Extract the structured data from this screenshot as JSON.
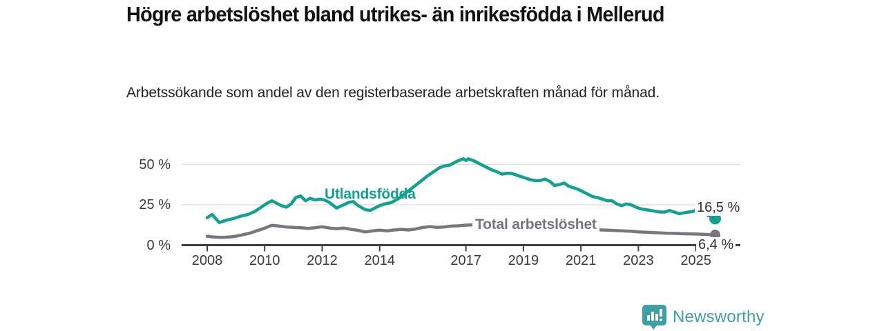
{
  "header": {
    "title": "Högre arbetslöshet bland utrikes- än inrikesfödda i Mellerud",
    "subtitle": "Arbetssökande som andel av den registerbaserade arbetskraften månad för månad."
  },
  "chart_data": {
    "type": "line",
    "title": "Högre arbetslöshet bland utrikes- än inrikesfödda i Mellerud",
    "xlabel": "",
    "ylabel": "Arbetssökande som andel av den registerbaserade arbetskraften (%)",
    "grid": "horizontal",
    "legend_position": "inline-labels",
    "x_axis": {
      "ticks": [
        2008,
        2010,
        2012,
        2014,
        2017,
        2019,
        2021,
        2023,
        2025
      ],
      "range": [
        2007.2,
        2026.5
      ]
    },
    "y_axis": {
      "ticks": [
        0,
        25,
        50
      ],
      "tick_labels": [
        "0 %",
        "25 %",
        "50 %"
      ],
      "range": [
        0,
        57
      ],
      "unit": "%"
    },
    "series": [
      {
        "name": "Utlandsfödda",
        "color": "#12A191",
        "end_label": "16,5 %",
        "end_value": 16.5,
        "points": [
          [
            2008.0,
            17
          ],
          [
            2008.17,
            19
          ],
          [
            2008.42,
            14
          ],
          [
            2008.67,
            15.5
          ],
          [
            2008.92,
            16.5
          ],
          [
            2009.17,
            18
          ],
          [
            2009.42,
            19
          ],
          [
            2009.67,
            21
          ],
          [
            2009.92,
            24
          ],
          [
            2010.08,
            26
          ],
          [
            2010.25,
            27.5
          ],
          [
            2010.42,
            26
          ],
          [
            2010.58,
            24.5
          ],
          [
            2010.75,
            23.5
          ],
          [
            2010.92,
            25.5
          ],
          [
            2011.08,
            29.5
          ],
          [
            2011.25,
            30.5
          ],
          [
            2011.42,
            27.5
          ],
          [
            2011.58,
            29
          ],
          [
            2011.75,
            28
          ],
          [
            2011.92,
            28.5
          ],
          [
            2012.08,
            28
          ],
          [
            2012.25,
            26.5
          ],
          [
            2012.5,
            23
          ],
          [
            2012.75,
            25
          ],
          [
            2012.92,
            26.5
          ],
          [
            2013.08,
            27
          ],
          [
            2013.25,
            24.5
          ],
          [
            2013.5,
            22
          ],
          [
            2013.67,
            21.5
          ],
          [
            2013.83,
            23
          ],
          [
            2014.0,
            24.5
          ],
          [
            2014.17,
            25.5
          ],
          [
            2014.42,
            26.5
          ],
          [
            2014.67,
            29
          ],
          [
            2014.92,
            32.5
          ],
          [
            2015.17,
            36
          ],
          [
            2015.42,
            39.5
          ],
          [
            2015.67,
            43
          ],
          [
            2015.92,
            46
          ],
          [
            2016.08,
            48
          ],
          [
            2016.25,
            49
          ],
          [
            2016.42,
            49.5
          ],
          [
            2016.58,
            51
          ],
          [
            2016.75,
            52.5
          ],
          [
            2016.92,
            53.5
          ],
          [
            2017.0,
            52.5
          ],
          [
            2017.08,
            53.5
          ],
          [
            2017.25,
            52.5
          ],
          [
            2017.42,
            51
          ],
          [
            2017.58,
            49.5
          ],
          [
            2017.75,
            48
          ],
          [
            2017.92,
            46.5
          ],
          [
            2018.08,
            45.5
          ],
          [
            2018.25,
            44
          ],
          [
            2018.42,
            44.5
          ],
          [
            2018.58,
            44.5
          ],
          [
            2018.75,
            43.5
          ],
          [
            2018.92,
            42.5
          ],
          [
            2019.08,
            41.5
          ],
          [
            2019.25,
            40.5
          ],
          [
            2019.42,
            40
          ],
          [
            2019.58,
            40
          ],
          [
            2019.75,
            41
          ],
          [
            2019.92,
            39.5
          ],
          [
            2020.08,
            37
          ],
          [
            2020.25,
            37.5
          ],
          [
            2020.42,
            38.5
          ],
          [
            2020.58,
            36.5
          ],
          [
            2020.75,
            35.5
          ],
          [
            2020.92,
            34.5
          ],
          [
            2021.08,
            33
          ],
          [
            2021.25,
            31.5
          ],
          [
            2021.42,
            30
          ],
          [
            2021.58,
            29.5
          ],
          [
            2021.75,
            28.5
          ],
          [
            2021.92,
            27.5
          ],
          [
            2022.08,
            27.5
          ],
          [
            2022.25,
            25.5
          ],
          [
            2022.42,
            24.5
          ],
          [
            2022.58,
            25.5
          ],
          [
            2022.75,
            25
          ],
          [
            2022.92,
            23.5
          ],
          [
            2023.08,
            22.5
          ],
          [
            2023.25,
            22
          ],
          [
            2023.42,
            21.5
          ],
          [
            2023.58,
            21
          ],
          [
            2023.75,
            20.5
          ],
          [
            2023.92,
            20.5
          ],
          [
            2024.08,
            21.5
          ],
          [
            2024.25,
            20.5
          ],
          [
            2024.42,
            19.5
          ],
          [
            2024.58,
            20
          ],
          [
            2024.75,
            20.5
          ],
          [
            2024.92,
            21
          ],
          [
            2025.08,
            22.5
          ],
          [
            2025.25,
            21
          ],
          [
            2025.42,
            18.5
          ],
          [
            2025.67,
            16.5
          ]
        ]
      },
      {
        "name": "Total arbetslöshet",
        "color": "#77777E",
        "end_label": "6,4 %",
        "end_value": 6.4,
        "points": [
          [
            2008.0,
            5.5
          ],
          [
            2008.25,
            5
          ],
          [
            2008.5,
            4.8
          ],
          [
            2008.75,
            5
          ],
          [
            2009.0,
            5.5
          ],
          [
            2009.25,
            6.5
          ],
          [
            2009.5,
            7.5
          ],
          [
            2009.75,
            9
          ],
          [
            2010.0,
            10.5
          ],
          [
            2010.25,
            12.3
          ],
          [
            2010.5,
            11.8
          ],
          [
            2010.75,
            11.3
          ],
          [
            2011.0,
            11
          ],
          [
            2011.25,
            10.8
          ],
          [
            2011.5,
            10.4
          ],
          [
            2011.75,
            10.8
          ],
          [
            2012.0,
            11.4
          ],
          [
            2012.25,
            10.6
          ],
          [
            2012.5,
            10.2
          ],
          [
            2012.75,
            10.6
          ],
          [
            2013.0,
            9.8
          ],
          [
            2013.25,
            9.2
          ],
          [
            2013.5,
            8.2
          ],
          [
            2013.75,
            8.8
          ],
          [
            2014.0,
            9.3
          ],
          [
            2014.25,
            8.8
          ],
          [
            2014.5,
            9.4
          ],
          [
            2014.75,
            9.8
          ],
          [
            2015.0,
            9.4
          ],
          [
            2015.25,
            10
          ],
          [
            2015.5,
            11
          ],
          [
            2015.75,
            11.5
          ],
          [
            2016.0,
            11
          ],
          [
            2016.25,
            11.3
          ],
          [
            2016.5,
            11.8
          ],
          [
            2016.75,
            12
          ],
          [
            2017.0,
            12.4
          ],
          [
            2017.25,
            12.6
          ],
          [
            2017.75,
            12.2
          ],
          [
            2018.25,
            11.6
          ],
          [
            2018.75,
            11.2
          ],
          [
            2019.25,
            10.8
          ],
          [
            2019.75,
            10.5
          ],
          [
            2020.25,
            10.6
          ],
          [
            2020.75,
            10.2
          ],
          [
            2021.25,
            9.8
          ],
          [
            2021.75,
            9.4
          ],
          [
            2022.25,
            9
          ],
          [
            2022.5,
            8.8
          ],
          [
            2022.75,
            8.6
          ],
          [
            2023.0,
            8.2
          ],
          [
            2023.25,
            8
          ],
          [
            2023.5,
            7.8
          ],
          [
            2023.75,
            7.6
          ],
          [
            2024.0,
            7.4
          ],
          [
            2024.25,
            7.3
          ],
          [
            2024.5,
            7.1
          ],
          [
            2024.75,
            7
          ],
          [
            2025.0,
            6.9
          ],
          [
            2025.25,
            6.7
          ],
          [
            2025.67,
            6.4
          ]
        ]
      }
    ],
    "colors": {
      "grid": "#DADADA",
      "axis": "#3E3E42",
      "tick_text": "#3a3a3a"
    }
  },
  "footer": {
    "brand": "Newsworthy",
    "brand_color": "#3F9FA2",
    "logo_icon": "speech-bubble-bar-chart-icon"
  }
}
